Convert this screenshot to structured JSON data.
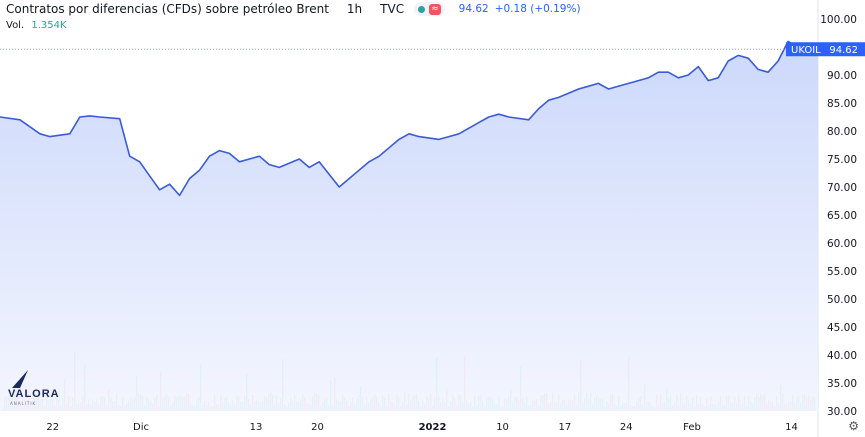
{
  "header": {
    "title": "Contratos por diferencias (CFDs) sobre petróleo Brent",
    "interval": "1h",
    "source": "TVC",
    "last_price": "94.62",
    "change": "+0.18 (+0.19%)",
    "approx_glyph": "≈"
  },
  "volume": {
    "label": "Vol.",
    "value": "1.354K"
  },
  "logo": {
    "name": "VALORA",
    "tagline": "ANALITIK"
  },
  "settings_icon": "gear-icon",
  "colors": {
    "line": "#3a5bd9",
    "area_top": "#c7d4fb",
    "area_bottom": "#f2f5fe",
    "vol_up": "#7fd0c6",
    "vol_down": "#f2a0a0",
    "price_label_bg": "#2962ff"
  },
  "chart_data": {
    "type": "area",
    "symbol_label": "UKOIL",
    "price_label": "94.62",
    "ylim": [
      30,
      100
    ],
    "y_ticks": [
      30,
      35,
      40,
      45,
      50,
      55,
      60,
      65,
      70,
      75,
      80,
      85,
      90,
      95,
      100
    ],
    "x_range": [
      0,
      82
    ],
    "x_ticks": [
      {
        "x": 6.1,
        "label": "22"
      },
      {
        "x": 16.3,
        "label": "Dic"
      },
      {
        "x": 29.6,
        "label": "13"
      },
      {
        "x": 36.7,
        "label": "20"
      },
      {
        "x": 50.0,
        "label": "2022",
        "bold": true
      },
      {
        "x": 58.1,
        "label": "10"
      },
      {
        "x": 65.3,
        "label": "17"
      },
      {
        "x": 72.4,
        "label": "24"
      },
      {
        "x": 80.0,
        "label": "Feb"
      },
      {
        "x": 91.5,
        "label": "14"
      }
    ],
    "series": [
      {
        "x": [
          0,
          2,
          4,
          5,
          7,
          8,
          9,
          10,
          12,
          13,
          14,
          15,
          16,
          17,
          18,
          19,
          20,
          21,
          22,
          23,
          24,
          26,
          27,
          28,
          30,
          31,
          32,
          34,
          36,
          37,
          38,
          39,
          40,
          41,
          42,
          44,
          45,
          46,
          48,
          49,
          50,
          51,
          53,
          54,
          55,
          56,
          58,
          59,
          60,
          61,
          63,
          64,
          65,
          66,
          67,
          68,
          69,
          70,
          71,
          72,
          73,
          74,
          75,
          76,
          77,
          78,
          79,
          80,
          81,
          82
        ],
        "values": [
          82.5,
          82.0,
          79.5,
          79.0,
          79.5,
          82.5,
          82.7,
          82.5,
          82.2,
          75.5,
          74.5,
          72.0,
          69.5,
          70.5,
          68.5,
          71.5,
          73.0,
          75.5,
          76.5,
          76.0,
          74.5,
          75.5,
          74.0,
          73.5,
          75.0,
          73.5,
          74.5,
          70.0,
          73.0,
          74.5,
          75.5,
          77.0,
          78.5,
          79.5,
          79.0,
          78.5,
          79.0,
          79.5,
          81.5,
          82.5,
          83.0,
          82.5,
          82.0,
          84.0,
          85.5,
          86.0,
          87.5,
          88.0,
          88.5,
          87.5,
          88.5,
          89.0,
          89.5,
          90.5,
          90.5,
          89.5,
          90.0,
          91.5,
          89.0,
          89.5,
          92.5,
          93.5,
          93.0,
          91.0,
          90.5,
          92.5,
          96.0,
          95.0,
          93.5,
          94.6
        ]
      }
    ],
    "volume": {
      "max": 100
    }
  }
}
